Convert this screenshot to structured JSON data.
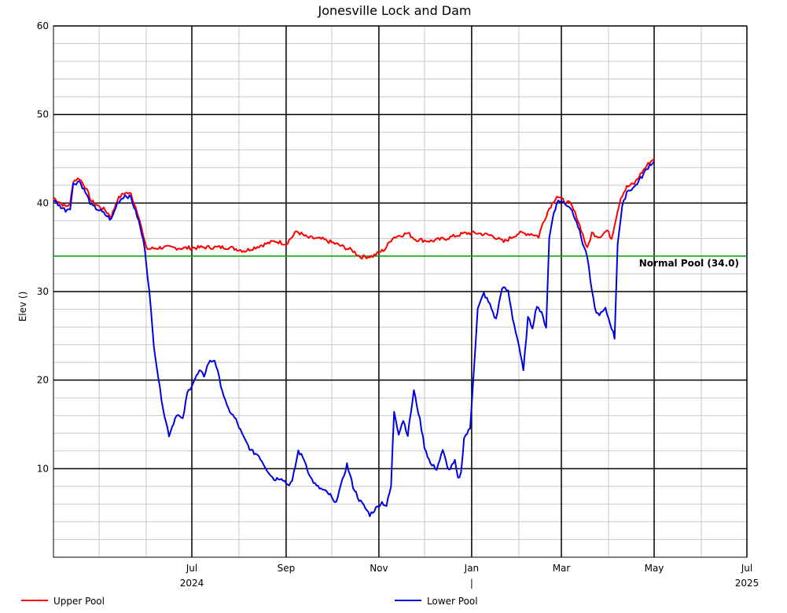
{
  "chart_data": {
    "type": "line",
    "title": "Jonesville Lock and Dam",
    "ylabel": "Elev ()",
    "xlabel": "",
    "ylim": [
      0,
      60
    ],
    "xlim": [
      "2024-04-01",
      "2025-07-01"
    ],
    "grid": true,
    "legend_position": "bottom",
    "y_ticks": [
      {
        "value": 10,
        "label": "10"
      },
      {
        "value": 20,
        "label": "20"
      },
      {
        "value": 30,
        "label": "30"
      },
      {
        "value": 40,
        "label": "40"
      },
      {
        "value": 50,
        "label": "50"
      },
      {
        "value": 60,
        "label": "60"
      }
    ],
    "x_ticks": [
      {
        "date": "2024-07-01",
        "label": "Jul",
        "sublabel": "2024"
      },
      {
        "date": "2024-09-01",
        "label": "Sep",
        "sublabel": ""
      },
      {
        "date": "2024-11-01",
        "label": "Nov",
        "sublabel": ""
      },
      {
        "date": "2025-01-01",
        "label": "Jan",
        "sublabel": "|"
      },
      {
        "date": "2025-03-01",
        "label": "Mar",
        "sublabel": ""
      },
      {
        "date": "2025-05-01",
        "label": "May",
        "sublabel": ""
      },
      {
        "date": "2025-07-01",
        "label": "Jul",
        "sublabel": "2025"
      }
    ],
    "reference_line": {
      "value": 34.0,
      "label": "Normal Pool (34.0)",
      "color": "#00a000"
    },
    "series": [
      {
        "name": "Upper Pool",
        "color": "#ff0000",
        "points": [
          [
            "2024-04-01",
            40.6
          ],
          [
            "2024-04-05",
            40.1
          ],
          [
            "2024-04-09",
            39.6
          ],
          [
            "2024-04-12",
            39.9
          ],
          [
            "2024-04-14",
            42.5
          ],
          [
            "2024-04-18",
            42.8
          ],
          [
            "2024-04-22",
            41.8
          ],
          [
            "2024-04-26",
            40.2
          ],
          [
            "2024-05-01",
            39.6
          ],
          [
            "2024-05-05",
            39.2
          ],
          [
            "2024-05-09",
            38.4
          ],
          [
            "2024-05-13",
            40.4
          ],
          [
            "2024-05-18",
            41.2
          ],
          [
            "2024-05-22",
            41.0
          ],
          [
            "2024-05-27",
            38.6
          ],
          [
            "2024-05-31",
            35.5
          ],
          [
            "2024-06-02",
            34.8
          ],
          [
            "2024-06-12",
            35.0
          ],
          [
            "2024-06-25",
            34.9
          ],
          [
            "2024-07-10",
            35.0
          ],
          [
            "2024-07-25",
            35.0
          ],
          [
            "2024-08-05",
            34.6
          ],
          [
            "2024-08-15",
            35.2
          ],
          [
            "2024-08-25",
            35.7
          ],
          [
            "2024-09-01",
            35.4
          ],
          [
            "2024-09-08",
            36.8
          ],
          [
            "2024-09-15",
            36.1
          ],
          [
            "2024-09-25",
            35.9
          ],
          [
            "2024-10-05",
            35.3
          ],
          [
            "2024-10-15",
            34.6
          ],
          [
            "2024-10-20",
            33.9
          ],
          [
            "2024-10-28",
            34.0
          ],
          [
            "2024-11-05",
            34.8
          ],
          [
            "2024-11-10",
            36.1
          ],
          [
            "2024-11-20",
            36.6
          ],
          [
            "2024-11-25",
            35.9
          ],
          [
            "2024-12-05",
            35.7
          ],
          [
            "2024-12-15",
            36.0
          ],
          [
            "2024-12-28",
            36.6
          ],
          [
            "2025-01-05",
            36.6
          ],
          [
            "2025-01-15",
            36.3
          ],
          [
            "2025-01-22",
            35.6
          ],
          [
            "2025-02-01",
            36.6
          ],
          [
            "2025-02-10",
            36.5
          ],
          [
            "2025-02-14",
            36.2
          ],
          [
            "2025-02-17",
            37.8
          ],
          [
            "2025-02-21",
            39.4
          ],
          [
            "2025-02-26",
            40.8
          ],
          [
            "2025-03-03",
            40.2
          ],
          [
            "2025-03-07",
            39.9
          ],
          [
            "2025-03-11",
            38.5
          ],
          [
            "2025-03-15",
            36.5
          ],
          [
            "2025-03-18",
            34.8
          ],
          [
            "2025-03-21",
            36.6
          ],
          [
            "2025-03-26",
            36.2
          ],
          [
            "2025-03-31",
            36.9
          ],
          [
            "2025-04-03",
            36.0
          ],
          [
            "2025-04-06",
            38.4
          ],
          [
            "2025-04-09",
            40.6
          ],
          [
            "2025-04-13",
            41.8
          ],
          [
            "2025-04-18",
            42.2
          ],
          [
            "2025-04-23",
            43.5
          ],
          [
            "2025-04-28",
            44.6
          ],
          [
            "2025-05-01",
            45.0
          ]
        ]
      },
      {
        "name": "Lower Pool",
        "color": "#0000e0",
        "points": [
          [
            "2024-04-01",
            40.3
          ],
          [
            "2024-04-05",
            39.7
          ],
          [
            "2024-04-09",
            39.2
          ],
          [
            "2024-04-12",
            39.5
          ],
          [
            "2024-04-14",
            42.1
          ],
          [
            "2024-04-18",
            42.5
          ],
          [
            "2024-04-22",
            41.2
          ],
          [
            "2024-04-26",
            39.7
          ],
          [
            "2024-05-01",
            39.2
          ],
          [
            "2024-05-05",
            38.7
          ],
          [
            "2024-05-09",
            38.1
          ],
          [
            "2024-05-13",
            40.0
          ],
          [
            "2024-05-18",
            40.9
          ],
          [
            "2024-05-22",
            40.6
          ],
          [
            "2024-05-27",
            38.0
          ],
          [
            "2024-05-31",
            35.0
          ],
          [
            "2024-06-03",
            30.0
          ],
          [
            "2024-06-06",
            24.0
          ],
          [
            "2024-06-10",
            19.0
          ],
          [
            "2024-06-13",
            16.0
          ],
          [
            "2024-06-16",
            13.8
          ],
          [
            "2024-06-19",
            15.2
          ],
          [
            "2024-06-21",
            16.2
          ],
          [
            "2024-06-25",
            15.5
          ],
          [
            "2024-06-28",
            18.5
          ],
          [
            "2024-07-02",
            19.8
          ],
          [
            "2024-07-06",
            21.0
          ],
          [
            "2024-07-09",
            20.5
          ],
          [
            "2024-07-12",
            22.0
          ],
          [
            "2024-07-16",
            22.3
          ],
          [
            "2024-07-20",
            19.5
          ],
          [
            "2024-07-24",
            17.0
          ],
          [
            "2024-07-30",
            15.5
          ],
          [
            "2024-08-04",
            13.5
          ],
          [
            "2024-08-09",
            12.0
          ],
          [
            "2024-08-14",
            11.5
          ],
          [
            "2024-08-19",
            10.0
          ],
          [
            "2024-08-24",
            8.8
          ],
          [
            "2024-08-29",
            9.0
          ],
          [
            "2024-09-02",
            8.2
          ],
          [
            "2024-09-05",
            8.5
          ],
          [
            "2024-09-09",
            12.0
          ],
          [
            "2024-09-13",
            11.0
          ],
          [
            "2024-09-17",
            9.0
          ],
          [
            "2024-09-21",
            8.0
          ],
          [
            "2024-09-26",
            7.5
          ],
          [
            "2024-09-30",
            7.0
          ],
          [
            "2024-10-03",
            6.0
          ],
          [
            "2024-10-07",
            8.0
          ],
          [
            "2024-10-11",
            10.5
          ],
          [
            "2024-10-15",
            8.0
          ],
          [
            "2024-10-19",
            6.5
          ],
          [
            "2024-10-22",
            5.8
          ],
          [
            "2024-10-26",
            4.8
          ],
          [
            "2024-10-30",
            5.5
          ],
          [
            "2024-11-03",
            6.2
          ],
          [
            "2024-11-06",
            5.8
          ],
          [
            "2024-11-09",
            8.0
          ],
          [
            "2024-11-11",
            16.5
          ],
          [
            "2024-11-14",
            14.0
          ],
          [
            "2024-11-17",
            15.5
          ],
          [
            "2024-11-20",
            13.8
          ],
          [
            "2024-11-24",
            18.8
          ],
          [
            "2024-11-28",
            15.5
          ],
          [
            "2024-12-01",
            12.5
          ],
          [
            "2024-12-05",
            10.5
          ],
          [
            "2024-12-09",
            10.0
          ],
          [
            "2024-12-13",
            12.0
          ],
          [
            "2024-12-17",
            9.8
          ],
          [
            "2024-12-21",
            10.8
          ],
          [
            "2024-12-23",
            8.8
          ],
          [
            "2024-12-25",
            9.5
          ],
          [
            "2024-12-27",
            13.5
          ],
          [
            "2024-12-31",
            14.5
          ],
          [
            "2025-01-02",
            20.0
          ],
          [
            "2025-01-05",
            28.0
          ],
          [
            "2025-01-09",
            29.8
          ],
          [
            "2025-01-13",
            28.5
          ],
          [
            "2025-01-17",
            26.8
          ],
          [
            "2025-01-21",
            30.5
          ],
          [
            "2025-01-25",
            30.0
          ],
          [
            "2025-01-28",
            27.0
          ],
          [
            "2025-02-01",
            24.0
          ],
          [
            "2025-02-04",
            21.0
          ],
          [
            "2025-02-07",
            27.0
          ],
          [
            "2025-02-10",
            26.0
          ],
          [
            "2025-02-13",
            28.5
          ],
          [
            "2025-02-16",
            27.5
          ],
          [
            "2025-02-19",
            26.0
          ],
          [
            "2025-02-21",
            36.0
          ],
          [
            "2025-02-24",
            39.0
          ],
          [
            "2025-02-27",
            40.3
          ],
          [
            "2025-03-03",
            40.0
          ],
          [
            "2025-03-07",
            39.5
          ],
          [
            "2025-03-11",
            38.0
          ],
          [
            "2025-03-15",
            35.5
          ],
          [
            "2025-03-18",
            34.0
          ],
          [
            "2025-03-21",
            30.0
          ],
          [
            "2025-03-24",
            27.5
          ],
          [
            "2025-03-27",
            27.5
          ],
          [
            "2025-03-30",
            28.0
          ],
          [
            "2025-04-02",
            26.5
          ],
          [
            "2025-04-05",
            24.8
          ],
          [
            "2025-04-07",
            35.5
          ],
          [
            "2025-04-10",
            39.5
          ],
          [
            "2025-04-13",
            41.3
          ],
          [
            "2025-04-18",
            41.8
          ],
          [
            "2025-04-23",
            43.0
          ],
          [
            "2025-04-28",
            44.3
          ],
          [
            "2025-05-01",
            44.7
          ]
        ]
      }
    ]
  }
}
